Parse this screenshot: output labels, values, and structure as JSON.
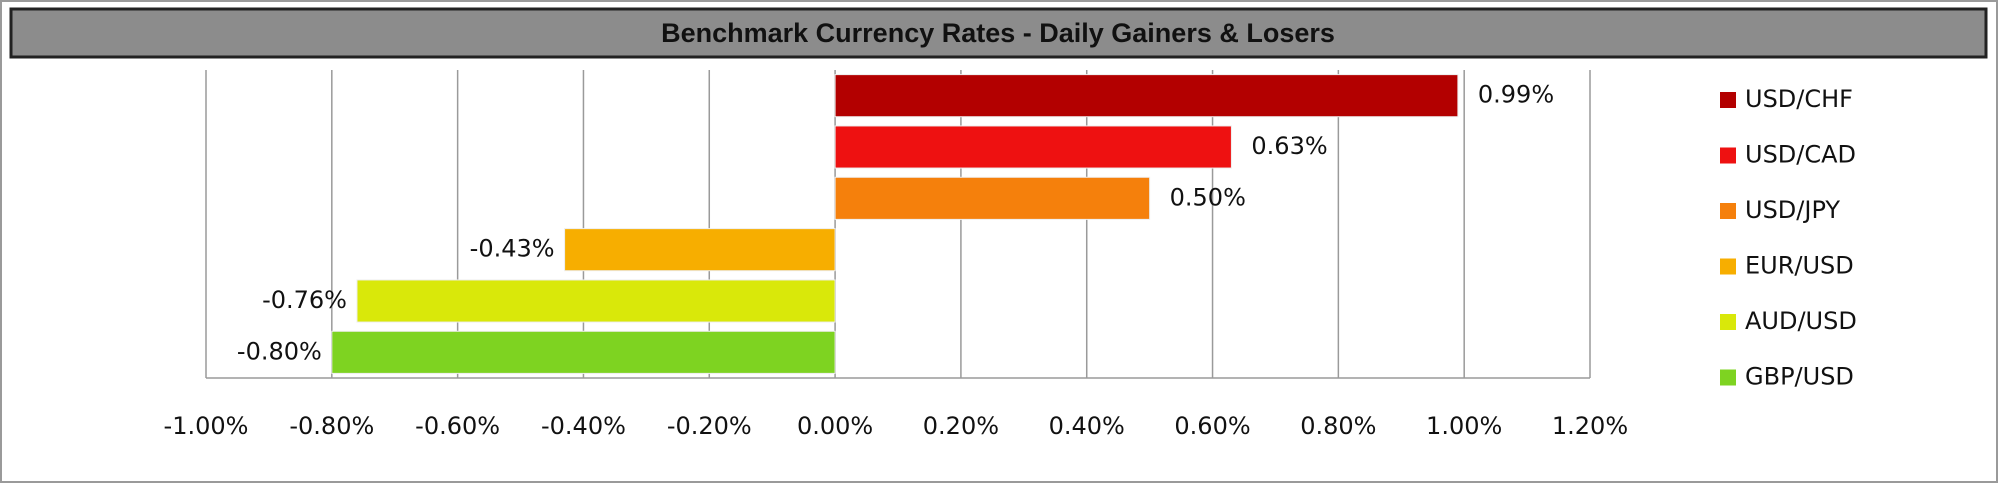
{
  "chart_data": {
    "type": "bar",
    "orientation": "horizontal",
    "title": "Benchmark Currency Rates - Daily Gainers & Losers",
    "series": [
      {
        "name": "USD/CHF",
        "color": "#b30000",
        "values": [
          0.99
        ],
        "value_labels": [
          "0.99%"
        ]
      },
      {
        "name": "USD/CAD",
        "color": "#ee1111",
        "values": [
          0.63
        ],
        "value_labels": [
          "0.63%"
        ]
      },
      {
        "name": "USD/JPY",
        "color": "#f5800c",
        "values": [
          0.5
        ],
        "value_labels": [
          "0.50%"
        ]
      },
      {
        "name": "EUR/USD",
        "color": "#f7ae00",
        "values": [
          -0.43
        ],
        "value_labels": [
          "-0.43%"
        ]
      },
      {
        "name": "AUD/USD",
        "color": "#d9e80a",
        "values": [
          -0.76
        ],
        "value_labels": [
          "-0.76%"
        ]
      },
      {
        "name": "GBP/USD",
        "color": "#7ed321",
        "values": [
          -0.8
        ],
        "value_labels": [
          "-0.80%"
        ]
      }
    ],
    "xlim": [
      -1.0,
      1.2
    ],
    "xticks": [
      {
        "value": -1.0,
        "label": "-1.00%"
      },
      {
        "value": -0.8,
        "label": "-0.80%"
      },
      {
        "value": -0.6,
        "label": "-0.60%"
      },
      {
        "value": -0.4,
        "label": "-0.40%"
      },
      {
        "value": -0.2,
        "label": "-0.20%"
      },
      {
        "value": 0.0,
        "label": "0.00%"
      },
      {
        "value": 0.2,
        "label": "0.20%"
      },
      {
        "value": 0.4,
        "label": "0.40%"
      },
      {
        "value": 0.6,
        "label": "0.60%"
      },
      {
        "value": 0.8,
        "label": "0.80%"
      },
      {
        "value": 1.0,
        "label": "1.00%"
      },
      {
        "value": 1.2,
        "label": "1.20%"
      }
    ],
    "grid": true,
    "legend": "right"
  }
}
